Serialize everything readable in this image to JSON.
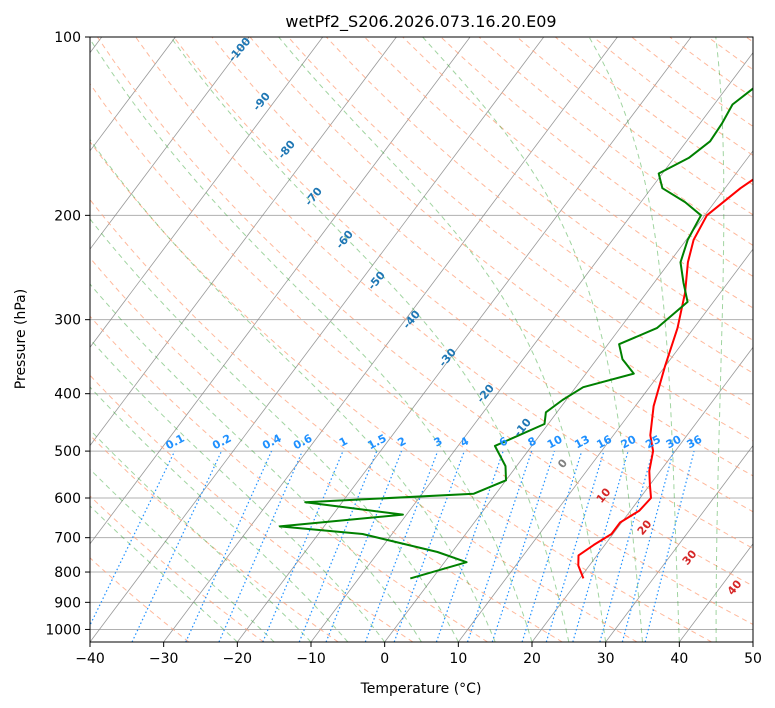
{
  "chart_data": {
    "type": "line",
    "title": "wetPf2_S206.2026.073.16.20.E09",
    "xlabel": "Temperature (°C)",
    "ylabel": "Pressure (hPa)",
    "xlim": [
      -40,
      50
    ],
    "ylim": [
      1050,
      100
    ],
    "yscale": "log",
    "grid": true,
    "x_ticks": [
      "−40",
      "−30",
      "−20",
      "−10",
      "0",
      "10",
      "20",
      "30",
      "40",
      "50"
    ],
    "x_tick_values": [
      -40,
      -30,
      -20,
      -10,
      0,
      10,
      20,
      30,
      40,
      50
    ],
    "y_ticks": [
      "100",
      "200",
      "300",
      "400",
      "500",
      "600",
      "700",
      "800",
      "900",
      "1000"
    ],
    "y_tick_values": [
      100,
      200,
      300,
      400,
      500,
      600,
      700,
      800,
      900,
      1000
    ],
    "series": [
      {
        "color": "#ff0000",
        "points": [
          [
            14,
            100
          ],
          [
            12.2,
            115
          ],
          [
            9.3,
            130
          ],
          [
            7.6,
            145
          ],
          [
            5,
            160
          ],
          [
            2.1,
            180
          ],
          [
            0.3,
            200
          ],
          [
            1,
            220
          ],
          [
            2.5,
            240
          ],
          [
            5.2,
            270
          ],
          [
            7.8,
            310
          ],
          [
            10,
            360
          ],
          [
            12.5,
            420
          ],
          [
            15,
            470
          ],
          [
            17,
            500
          ],
          [
            18.5,
            540
          ],
          [
            20,
            570
          ],
          [
            21.5,
            600
          ],
          [
            21.2,
            630
          ],
          [
            19.8,
            660
          ],
          [
            19.8,
            690
          ],
          [
            18.5,
            720
          ],
          [
            17.5,
            750
          ],
          [
            18.5,
            780
          ],
          [
            20.5,
            820
          ]
        ]
      },
      {
        "color": "#008000",
        "points": [
          [
            -2,
            100
          ],
          [
            -4,
            110
          ],
          [
            -6,
            120
          ],
          [
            -7.5,
            130
          ],
          [
            -7,
            140
          ],
          [
            -6.8,
            150
          ],
          [
            -8,
            160
          ],
          [
            -10.5,
            170
          ],
          [
            -8.5,
            180
          ],
          [
            -4,
            190
          ],
          [
            -0.5,
            200
          ],
          [
            0.2,
            220
          ],
          [
            1.5,
            240
          ],
          [
            4,
            260
          ],
          [
            6.5,
            280
          ],
          [
            5,
            310
          ],
          [
            1.5,
            330
          ],
          [
            3.5,
            350
          ],
          [
            6.5,
            370
          ],
          [
            1,
            390
          ],
          [
            -0.5,
            410
          ],
          [
            -1.5,
            430
          ],
          [
            -0.5,
            450
          ],
          [
            -5,
            490
          ],
          [
            -1.5,
            530
          ],
          [
            0,
            560
          ],
          [
            -3,
            590
          ],
          [
            -25,
            610
          ],
          [
            -10.5,
            640
          ],
          [
            -26,
            670
          ],
          [
            -14,
            690
          ],
          [
            -2,
            740
          ],
          [
            3,
            770
          ],
          [
            -3,
            820
          ]
        ]
      }
    ],
    "dry_adiabat_labels": [
      "-100",
      "-90",
      "-80",
      "-70",
      "-60",
      "-50",
      "-40",
      "-30",
      "-20",
      "-10",
      "0",
      "10",
      "20",
      "30",
      "40"
    ],
    "mixing_ratio_labels": [
      "0.1",
      "0.2",
      "0.4",
      "0.6",
      "1",
      "1.5",
      "2",
      "3",
      "4",
      "6",
      "8",
      "10",
      "13",
      "16",
      "20",
      "25",
      "30",
      "36"
    ],
    "colors": {
      "temperature": "#ff0000",
      "dewpoint": "#008000",
      "dry_adiabat_label": "#1f77b4",
      "warm_adiabat_label": "#d62728",
      "zero_label": "#808080",
      "mixing_ratio": "#1e90ff",
      "dry_adiabat": "#ffa07a",
      "moist_adiabat": "#2ca02c",
      "isotherm": "#808080",
      "isobar": "#b0b0b0",
      "background": "#ffffff"
    }
  }
}
